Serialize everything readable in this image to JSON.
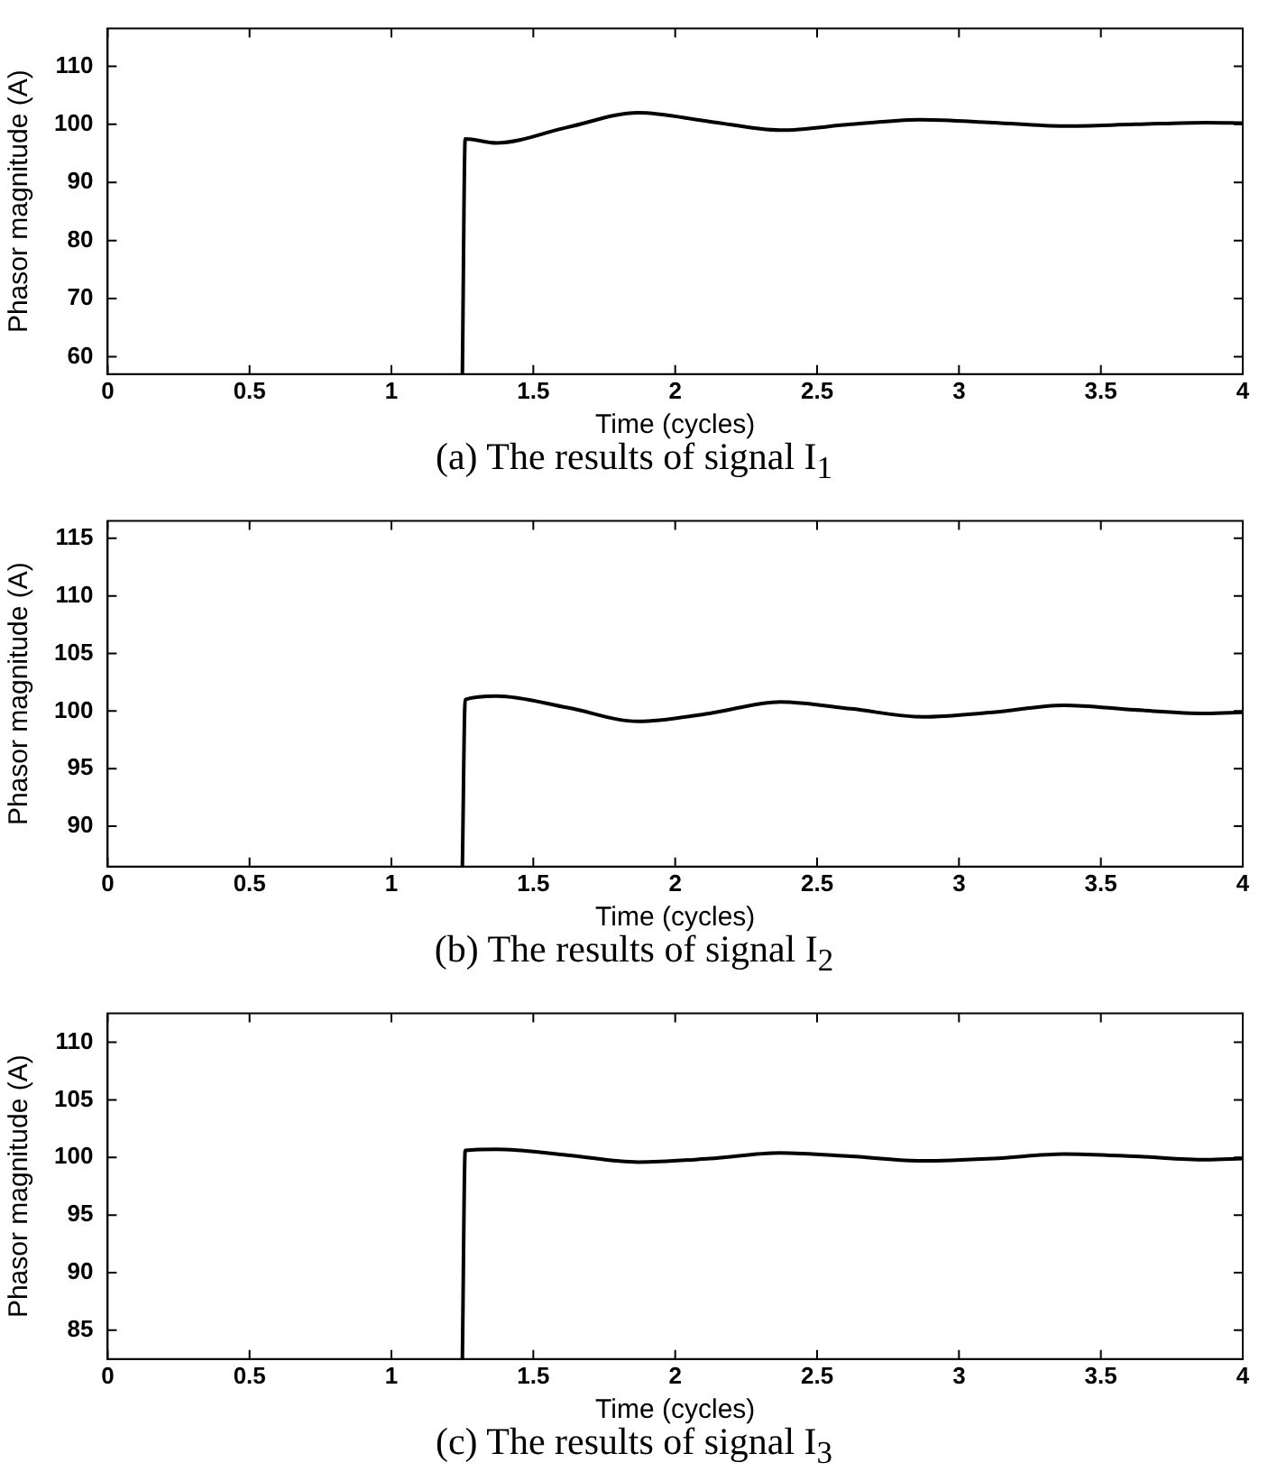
{
  "chart_data": [
    {
      "type": "line",
      "title": "(a) The results of signal I$_{1}$",
      "xlabel": "Time (cycles)",
      "ylabel": "Phasor magnitude (A)",
      "x": [
        1.25,
        1.26,
        1.37,
        1.62,
        1.87,
        2.12,
        2.37,
        2.62,
        2.87,
        3.12,
        3.37,
        3.62,
        3.87,
        4
      ],
      "series": [
        {
          "color": "#000000",
          "values": [
            57,
            97.5,
            96.8,
            99.5,
            102,
            100.5,
            99,
            100,
            100.8,
            100.3,
            99.7,
            100,
            100.3,
            100.2
          ]
        }
      ],
      "xlim": [
        0,
        4
      ],
      "xticks": [
        0,
        0.5,
        1,
        1.5,
        2,
        2.5,
        3,
        3.5,
        4
      ],
      "ylim": [
        57,
        116.5
      ],
      "yticks": [
        60,
        70,
        80,
        90,
        100,
        110
      ]
    },
    {
      "type": "line",
      "title": "(b) The results of signal I$_{2}$",
      "xlabel": "Time (cycles)",
      "ylabel": "Phasor magnitude (A)",
      "x": [
        1.25,
        1.26,
        1.37,
        1.62,
        1.87,
        2.12,
        2.37,
        2.62,
        2.87,
        3.12,
        3.37,
        3.62,
        3.87,
        4
      ],
      "series": [
        {
          "color": "#000000",
          "values": [
            86.5,
            101,
            101.3,
            100.3,
            99.1,
            99.8,
            100.8,
            100.2,
            99.5,
            99.9,
            100.5,
            100.1,
            99.8,
            99.9
          ]
        }
      ],
      "xlim": [
        0,
        4
      ],
      "xticks": [
        0,
        0.5,
        1,
        1.5,
        2,
        2.5,
        3,
        3.5,
        4
      ],
      "ylim": [
        86.5,
        116.5
      ],
      "yticks": [
        90,
        95,
        100,
        105,
        110,
        115
      ]
    },
    {
      "type": "line",
      "title": "(c) The results of signal I$_{3}$",
      "xlabel": "Time (cycles)",
      "ylabel": "Phasor magnitude (A)",
      "x": [
        1.25,
        1.26,
        1.37,
        1.62,
        1.87,
        2.12,
        2.37,
        2.62,
        2.87,
        3.12,
        3.37,
        3.62,
        3.87,
        4
      ],
      "series": [
        {
          "color": "#000000",
          "values": [
            82.5,
            100.6,
            100.7,
            100.2,
            99.6,
            99.9,
            100.4,
            100.1,
            99.7,
            99.9,
            100.3,
            100.1,
            99.8,
            99.9
          ]
        }
      ],
      "xlim": [
        0,
        4
      ],
      "xticks": [
        0,
        0.5,
        1,
        1.5,
        2,
        2.5,
        3,
        3.5,
        4
      ],
      "ylim": [
        82.5,
        112.5
      ],
      "yticks": [
        85,
        90,
        95,
        100,
        105,
        110
      ]
    }
  ]
}
